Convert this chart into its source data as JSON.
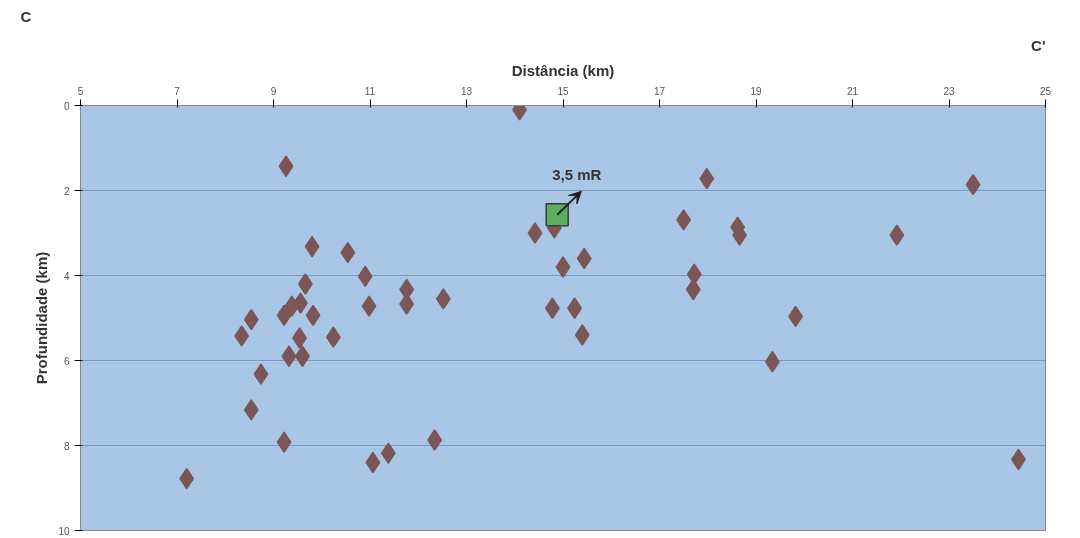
{
  "chart_data": {
    "type": "scatter",
    "xlabel": "Distância (km)",
    "ylabel": "Profundidade (km)",
    "xlim": [
      5,
      25
    ],
    "xticks": [
      5,
      7,
      9,
      11,
      13,
      15,
      17,
      19,
      21,
      23,
      25
    ],
    "ylim": [
      10,
      0
    ],
    "yticks": [
      0,
      2,
      4,
      6,
      8,
      10
    ],
    "grid": "y",
    "series": [
      {
        "marker": "diamond",
        "color": "#7a5656",
        "x": [
          7.2,
          8.34,
          8.54,
          8.54,
          8.74,
          9.26,
          9.22,
          9.8,
          10.54,
          10.9,
          10.98,
          9.66,
          9.22,
          9.38,
          9.56,
          9.82,
          9.54,
          9.32,
          9.6,
          10.24,
          11.06,
          11.38,
          11.76,
          11.76,
          12.52,
          12.34,
          14.1,
          14.42,
          14.82,
          15.0,
          15.44,
          14.78,
          15.24,
          15.4,
          17.98,
          17.5,
          17.72,
          17.7,
          18.62,
          18.66,
          19.82,
          19.34,
          21.92,
          23.5,
          24.44
        ],
        "values": [
          8.78,
          5.42,
          5.04,
          7.16,
          6.32,
          1.43,
          7.92,
          3.32,
          3.46,
          4.02,
          4.72,
          4.2,
          4.94,
          4.72,
          4.65,
          4.94,
          5.47,
          5.9,
          5.9,
          5.45,
          8.4,
          8.18,
          4.33,
          4.67,
          4.55,
          7.87,
          0.1,
          3.0,
          2.88,
          3.8,
          3.6,
          4.77,
          4.77,
          5.4,
          1.72,
          2.69,
          3.97,
          4.33,
          2.86,
          3.05,
          4.96,
          6.03,
          3.05,
          1.86,
          8.33
        ]
      },
      {
        "marker": "square",
        "color": "#5fae5f",
        "x": [
          14.88
        ],
        "values": [
          2.57
        ]
      }
    ],
    "annotations": [
      "C",
      "C'",
      {
        "text": "3,5 mR",
        "x": 14.88,
        "y": 2.57
      }
    ]
  }
}
